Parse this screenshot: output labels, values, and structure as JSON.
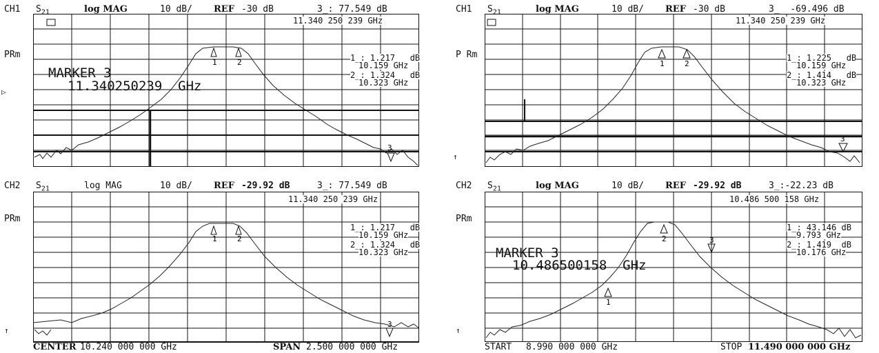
{
  "panels": [
    {
      "channel": "CH1",
      "param": "S",
      "param_sub": "21",
      "format": "log MAG",
      "scale": "10 dB/",
      "ref_label": "REF",
      "ref_value": "-30 dB",
      "marker_readout": "3_: 77.549 dB",
      "marker_freq": "11.340 250 239 GHz",
      "side_label": "PRm",
      "marker_title": "MARKER 3",
      "marker_big_freq": "11.340250239  GHz",
      "marker_list": [
        {
          "line1": "1_: 1.217   dB",
          "line2": "10.159 GHz"
        },
        {
          "line1": "2_: 1.324   dB",
          "line2": "10.323 GHz"
        }
      ],
      "footer_left_label": "",
      "footer_left_value": "",
      "footer_right_label": "",
      "footer_right_value": ""
    },
    {
      "channel": "CH1",
      "param": "S",
      "param_sub": "21",
      "format": "log MAG",
      "scale": "10 dB/",
      "ref_label": "REF",
      "ref_value": "-30 dB",
      "marker_readout": "3_  -69.496 dB",
      "marker_freq": "11.340 250 239 GHz",
      "side_label": "P Rm",
      "marker_title": "",
      "marker_big_freq": "",
      "marker_list": [
        {
          "line1": "1_: 1.225   dB",
          "line2": "10.159 GHz"
        },
        {
          "line1": "2_: 1.414   dB",
          "line2": "10.323 GHz"
        }
      ],
      "footer_left_label": "",
      "footer_left_value": "",
      "footer_right_label": "",
      "footer_right_value": ""
    },
    {
      "channel": "CH2",
      "param": "S",
      "param_sub": "21",
      "format": "log MAG",
      "scale": "10 dB/",
      "ref_label": "REF",
      "ref_value": "-29.92 dB",
      "marker_readout": "3_: 77.549 dB",
      "marker_freq": "11.340 250 239 GHz",
      "side_label": "PRm",
      "marker_title": "",
      "marker_big_freq": "",
      "marker_list": [
        {
          "line1": "1_: 1.217   dB",
          "line2": "10.159 GHz"
        },
        {
          "line1": "2_: 1.324   dB",
          "line2": "10.323 GHz"
        }
      ],
      "footer_left_label": "CENTER",
      "footer_left_value": "10.240 000 000 GHz",
      "footer_right_label": "SPAN",
      "footer_right_value": "2.500 000 000 GHz"
    },
    {
      "channel": "CH2",
      "param": "S",
      "param_sub": "21",
      "format": "log MAG",
      "scale": "10 dB/",
      "ref_label": "REF",
      "ref_value": "-29.92 dB",
      "marker_readout": "3_:-22.23 dB",
      "marker_freq": "10.486 500 158 GHz",
      "side_label": "PRm",
      "marker_title": "MARKER 3",
      "marker_big_freq": "10.486500158  GHz",
      "marker_list": [
        {
          "line1": "1_: 43.146 dB",
          "line2": "9.793 GHz"
        },
        {
          "line1": "2_: 1.419  dB",
          "line2": "10.176 GHz"
        }
      ],
      "footer_left_label": "START",
      "footer_left_value": "8.990 000 000 GHz",
      "footer_right_label": "STOP",
      "footer_right_value": "11.490 000 000 GHz"
    }
  ],
  "colors": {
    "trace": "#222222",
    "grid": "#111111",
    "paper": "#ffffff"
  },
  "icons": {
    "marker": "open-triangle-marker-icon",
    "ref_pointer": "ref-arrow-icon"
  }
}
